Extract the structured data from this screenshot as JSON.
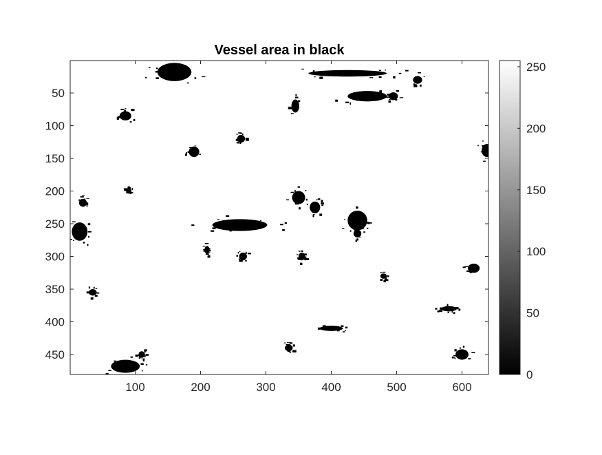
{
  "chart_data": {
    "type": "heatmap",
    "title": "Vessel area in black",
    "xlabel": "",
    "ylabel": "",
    "image_size": {
      "columns": 640,
      "rows": 480
    },
    "xlim": [
      0.5,
      640.5
    ],
    "ylim": [
      0.5,
      480.5
    ],
    "y_direction": "reverse",
    "x_ticks": [
      100,
      200,
      300,
      400,
      500,
      600
    ],
    "x_tick_labels": [
      "100",
      "200",
      "300",
      "400",
      "500",
      "600"
    ],
    "y_ticks": [
      50,
      100,
      150,
      200,
      250,
      300,
      350,
      400,
      450
    ],
    "y_tick_labels": [
      "50",
      "100",
      "150",
      "200",
      "250",
      "300",
      "350",
      "400",
      "450"
    ],
    "colormap": "gray",
    "value_levels": {
      "background": 255,
      "vessel": 0
    },
    "colorbar": {
      "range": [
        0,
        255
      ],
      "ticks": [
        0,
        50,
        100,
        150,
        200,
        250
      ],
      "tick_labels": [
        "0",
        "50",
        "100",
        "150",
        "200",
        "250"
      ]
    },
    "vessel_regions": [
      {
        "x": 160,
        "y": 18,
        "rx": 26,
        "ry": 14
      },
      {
        "x": 85,
        "y": 85,
        "rx": 9,
        "ry": 7
      },
      {
        "x": 262,
        "y": 120,
        "rx": 6,
        "ry": 6
      },
      {
        "x": 190,
        "y": 140,
        "rx": 8,
        "ry": 8
      },
      {
        "x": 260,
        "y": 252,
        "rx": 42,
        "ry": 9
      },
      {
        "x": 350,
        "y": 210,
        "rx": 10,
        "ry": 10
      },
      {
        "x": 440,
        "y": 245,
        "rx": 15,
        "ry": 15
      },
      {
        "x": 375,
        "y": 225,
        "rx": 8,
        "ry": 9
      },
      {
        "x": 265,
        "y": 300,
        "rx": 6,
        "ry": 6
      },
      {
        "x": 638,
        "y": 138,
        "rx": 8,
        "ry": 10
      },
      {
        "x": 618,
        "y": 318,
        "rx": 9,
        "ry": 7
      },
      {
        "x": 600,
        "y": 450,
        "rx": 10,
        "ry": 8
      },
      {
        "x": 85,
        "y": 468,
        "rx": 22,
        "ry": 10
      },
      {
        "x": 20,
        "y": 218,
        "rx": 6,
        "ry": 6
      },
      {
        "x": 532,
        "y": 30,
        "rx": 7,
        "ry": 6
      },
      {
        "x": 495,
        "y": 55,
        "rx": 7,
        "ry": 6
      },
      {
        "x": 400,
        "y": 410,
        "rx": 18,
        "ry": 4
      },
      {
        "x": 335,
        "y": 440,
        "rx": 6,
        "ry": 5
      },
      {
        "x": 15,
        "y": 262,
        "rx": 12,
        "ry": 14
      },
      {
        "x": 35,
        "y": 355,
        "rx": 6,
        "ry": 5
      },
      {
        "x": 580,
        "y": 380,
        "rx": 12,
        "ry": 4
      },
      {
        "x": 355,
        "y": 300,
        "rx": 5,
        "ry": 6
      },
      {
        "x": 425,
        "y": 20,
        "rx": 60,
        "ry": 5
      },
      {
        "x": 110,
        "y": 450,
        "rx": 5,
        "ry": 5
      },
      {
        "x": 455,
        "y": 55,
        "rx": 30,
        "ry": 8
      },
      {
        "x": 90,
        "y": 200,
        "rx": 4,
        "ry": 4
      },
      {
        "x": 440,
        "y": 265,
        "rx": 6,
        "ry": 6
      },
      {
        "x": 210,
        "y": 290,
        "rx": 4,
        "ry": 6
      },
      {
        "x": 480,
        "y": 330,
        "rx": 5,
        "ry": 4
      },
      {
        "x": 345,
        "y": 70,
        "rx": 6,
        "ry": 10
      }
    ]
  }
}
